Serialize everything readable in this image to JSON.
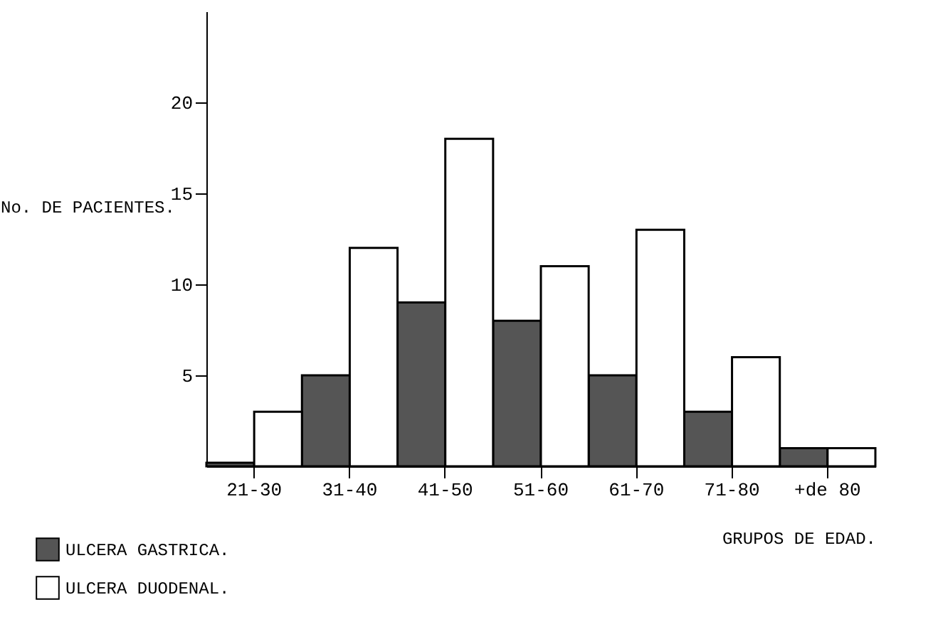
{
  "chart_data": {
    "type": "bar",
    "xlabel": "GRUPOS DE EDAD.",
    "ylabel": "No. DE PACIENTES.",
    "categories": [
      "21-30",
      "31-40",
      "41-50",
      "51-60",
      "61-70",
      "71-80",
      "+de 80"
    ],
    "series": [
      {
        "name": "ULCERA GASTRICA.",
        "color": "#555555",
        "values": [
          0.2,
          5,
          9,
          8,
          5,
          3,
          1
        ]
      },
      {
        "name": "ULCERA DUODENAL.",
        "color": "#ffffff",
        "values": [
          3,
          12,
          18,
          11,
          13,
          6,
          1
        ]
      }
    ],
    "ylim": [
      0,
      25
    ],
    "yticks": [
      5,
      10,
      15,
      20
    ],
    "grid": false,
    "legend": "bottom left"
  }
}
